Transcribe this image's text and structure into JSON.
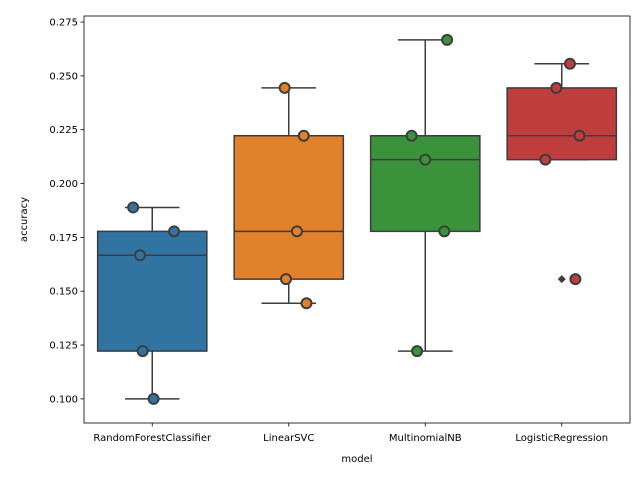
{
  "chart_data": {
    "type": "box",
    "xlabel": "model",
    "ylabel": "accuracy",
    "ylim": [
      0.0888,
      0.2778
    ],
    "yticks": [
      0.1,
      0.125,
      0.15,
      0.175,
      0.2,
      0.225,
      0.25,
      0.275
    ],
    "ytick_labels": [
      "0.100",
      "0.125",
      "0.150",
      "0.175",
      "0.200",
      "0.225",
      "0.250",
      "0.275"
    ],
    "grid": false,
    "categories": [
      "RandomForestClassifier",
      "LinearSVC",
      "MultinomialNB",
      "LogisticRegression"
    ],
    "series": [
      {
        "category": "RandomForestClassifier",
        "color": "#3274a1",
        "whisker_low": 0.1,
        "q1": 0.1222,
        "median": 0.1667,
        "q3": 0.1778,
        "whisker_high": 0.1889,
        "outliers": [],
        "points": [
          0.1889,
          0.1778,
          0.1667,
          0.1222,
          0.1
        ]
      },
      {
        "category": "LinearSVC",
        "color": "#e1812c",
        "whisker_low": 0.1444,
        "q1": 0.1556,
        "median": 0.1778,
        "q3": 0.2222,
        "whisker_high": 0.2444,
        "outliers": [],
        "points": [
          0.2444,
          0.2222,
          0.1778,
          0.1556,
          0.1444
        ]
      },
      {
        "category": "MultinomialNB",
        "color": "#3a923a",
        "whisker_low": 0.1222,
        "q1": 0.1778,
        "median": 0.2111,
        "q3": 0.2222,
        "whisker_high": 0.2667,
        "outliers": [],
        "points": [
          0.2667,
          0.2222,
          0.2111,
          0.1778,
          0.1222
        ]
      },
      {
        "category": "LogisticRegression",
        "color": "#c03d3e",
        "whisker_low": 0.2111,
        "q1": 0.2111,
        "median": 0.2222,
        "q3": 0.2444,
        "whisker_high": 0.2556,
        "outliers": [
          0.1556
        ],
        "points": [
          0.2556,
          0.2444,
          0.2222,
          0.2111,
          0.1556
        ]
      }
    ]
  }
}
